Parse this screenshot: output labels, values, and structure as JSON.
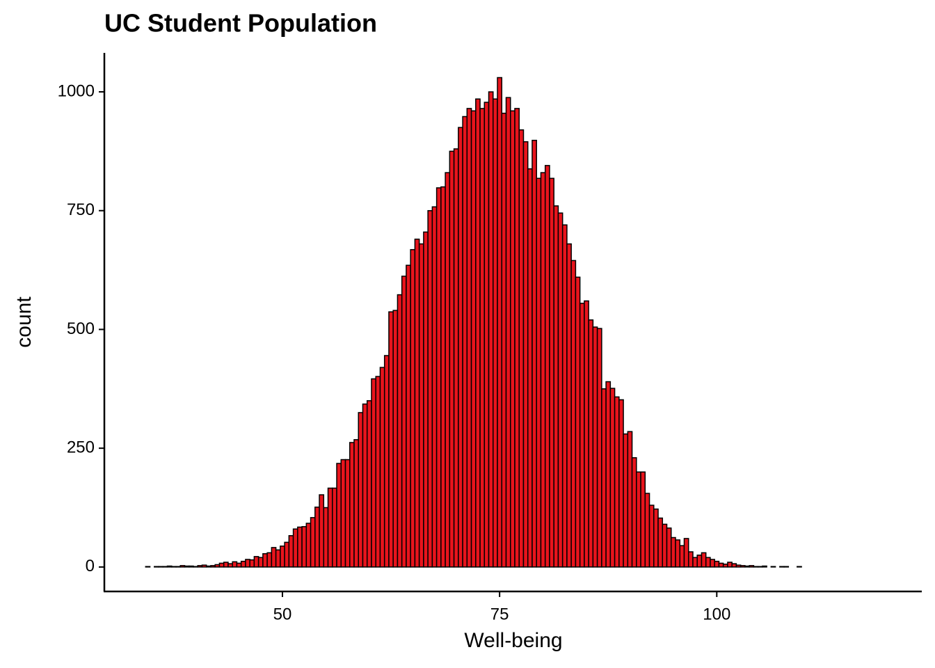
{
  "chart_data": {
    "type": "histogram",
    "title": "UC Student Population",
    "x_label": "Well-being",
    "y_label": "count",
    "color": "#e8141c",
    "edge_color": "#000000",
    "bins": [
      33.75,
      34.25,
      34.75,
      35.25,
      35.75,
      36.25,
      36.75,
      37.25,
      37.75,
      38.25,
      38.75,
      39.25,
      39.75,
      40.25,
      40.75,
      41.25,
      41.75,
      42.25,
      42.75,
      43.25,
      43.75,
      44.25,
      44.75,
      45.25,
      45.75,
      46.25,
      46.75,
      47.25,
      47.75,
      48.25,
      48.75,
      49.25,
      49.75,
      50.25,
      50.75,
      51.25,
      51.75,
      52.25,
      52.75,
      53.25,
      53.75,
      54.25,
      54.75,
      55.25,
      55.75,
      56.25,
      56.75,
      57.25,
      57.75,
      58.25,
      58.75,
      59.25,
      59.75,
      60.25,
      60.75,
      61.25,
      61.75,
      62.25,
      62.75,
      63.25,
      63.75,
      64.25,
      64.75,
      65.25,
      65.75,
      66.25,
      66.75,
      67.25,
      67.75,
      68.25,
      68.75,
      69.25,
      69.75,
      70.25,
      70.75,
      71.25,
      71.75,
      72.25,
      72.75,
      73.25,
      73.75,
      74.25,
      74.75,
      75.25,
      75.75,
      76.25,
      76.75,
      77.25,
      77.75,
      78.25,
      78.75,
      79.25,
      79.75,
      80.25,
      80.75,
      81.25,
      81.75,
      82.25,
      82.75,
      83.25,
      83.75,
      84.25,
      84.75,
      85.25,
      85.75,
      86.25,
      86.75,
      87.25,
      87.75,
      88.25,
      88.75,
      89.25,
      89.75,
      90.25,
      90.75,
      91.25,
      91.75,
      92.25,
      92.75,
      93.25,
      93.75,
      94.25,
      94.75,
      95.25,
      95.75,
      96.25,
      96.75,
      97.25,
      97.75,
      98.25,
      98.75,
      99.25,
      99.75,
      100.25,
      100.75,
      101.25,
      101.75,
      102.25,
      102.75,
      103.25,
      103.75,
      104.25,
      104.75,
      105.25,
      105.75,
      106.25,
      106.75,
      107.25,
      107.75,
      108.25,
      108.75,
      109.25,
      109.75,
      110.25,
      110.75,
      111.25,
      111.75,
      112.25,
      112.75,
      113.25,
      113.75,
      114.25,
      114.75,
      115.25,
      115.75,
      116.25,
      116.75,
      117.25,
      117.75,
      118.25,
      118.75,
      119.25
    ],
    "counts": [
      0,
      1,
      0,
      1,
      1,
      1,
      2,
      1,
      1,
      3,
      2,
      2,
      1,
      3,
      4,
      2,
      3,
      5,
      8,
      10,
      7,
      11,
      8,
      12,
      16,
      15,
      22,
      20,
      28,
      30,
      41,
      36,
      44,
      52,
      66,
      80,
      84,
      85,
      92,
      104,
      126,
      152,
      125,
      166,
      166,
      218,
      226,
      226,
      262,
      268,
      325,
      343,
      350,
      396,
      401,
      420,
      445,
      537,
      540,
      573,
      612,
      635,
      668,
      690,
      680,
      705,
      750,
      758,
      798,
      800,
      830,
      875,
      880,
      925,
      948,
      965,
      960,
      985,
      965,
      978,
      1000,
      985,
      1030,
      955,
      988,
      960,
      965,
      920,
      895,
      838,
      898,
      818,
      830,
      845,
      818,
      760,
      745,
      720,
      680,
      645,
      610,
      555,
      560,
      520,
      505,
      502,
      375,
      390,
      376,
      358,
      352,
      280,
      285,
      230,
      200,
      200,
      155,
      130,
      122,
      103,
      90,
      82,
      62,
      57,
      45,
      60,
      32,
      20,
      25,
      30,
      20,
      16,
      12,
      8,
      6,
      10,
      7,
      4,
      3,
      2,
      3,
      1,
      1,
      2,
      0,
      1,
      0,
      1,
      1,
      0,
      0,
      1,
      0,
      0,
      0,
      0,
      0,
      0,
      0,
      0,
      0,
      0,
      0,
      0,
      0,
      0,
      0,
      0,
      0,
      0,
      0
    ],
    "xlim": [
      29.5,
      123.6
    ],
    "ylim": [
      -50,
      1082
    ],
    "xticks": [
      50,
      75,
      100
    ],
    "yticks": [
      0,
      250,
      500,
      750,
      1000
    ]
  }
}
